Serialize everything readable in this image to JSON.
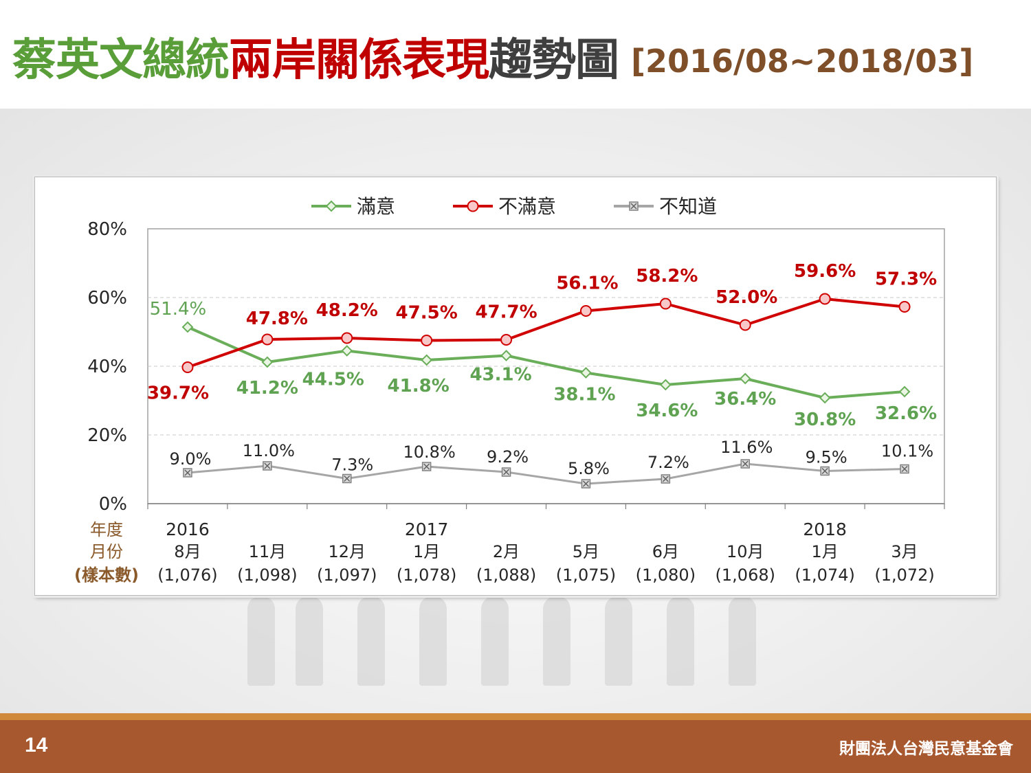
{
  "header": {
    "title_parts": [
      {
        "text": "蔡英文總統",
        "color": "#5a9e3a"
      },
      {
        "text": "兩岸關係表現",
        "color": "#c00000"
      },
      {
        "text": "趨勢圖",
        "color": "#3f3f3f"
      }
    ],
    "date_range": "[2016/08~2018/03]",
    "date_range_color": "#7f4f2a"
  },
  "footer": {
    "page_number": "14",
    "organization": "財團法人台灣民意基金會"
  },
  "chart_data": {
    "type": "line",
    "x_header_labels": [
      "年度",
      "月份",
      "(樣本數)"
    ],
    "years": [
      "2016",
      "",
      "",
      "2017",
      "",
      "",
      "",
      "",
      "2018",
      ""
    ],
    "months": [
      "8月",
      "11月",
      "12月",
      "1月",
      "2月",
      "5月",
      "6月",
      "10月",
      "1月",
      "3月"
    ],
    "sample_sizes": [
      "(1,076)",
      "(1,098)",
      "(1,097)",
      "(1,078)",
      "(1,088)",
      "(1,075)",
      "(1,080)",
      "(1,068)",
      "(1,074)",
      "(1,072)"
    ],
    "ylim": [
      0,
      80
    ],
    "yticks": [
      0,
      20,
      40,
      60,
      80
    ],
    "ytick_labels": [
      "0%",
      "20%",
      "40%",
      "60%",
      "80%"
    ],
    "grid": "horizontal-dashed",
    "legend_position": "top-center",
    "series": [
      {
        "name": "滿意",
        "color": "#6aae5a",
        "label_color": "#5fa352",
        "marker": "diamond",
        "values": [
          51.4,
          41.2,
          44.5,
          41.8,
          43.1,
          38.1,
          34.6,
          36.4,
          30.8,
          32.6
        ],
        "labels": [
          "51.4%",
          "41.2%",
          "44.5%",
          "41.8%",
          "43.1%",
          "38.1%",
          "34.6%",
          "36.4%",
          "30.8%",
          "32.6%"
        ]
      },
      {
        "name": "不滿意",
        "color": "#d00000",
        "label_color": "#c00000",
        "marker": "circle",
        "values": [
          39.7,
          47.8,
          48.2,
          47.5,
          47.7,
          56.1,
          58.2,
          52.0,
          59.6,
          57.3
        ],
        "labels": [
          "39.7%",
          "47.8%",
          "48.2%",
          "47.5%",
          "47.7%",
          "56.1%",
          "58.2%",
          "52.0%",
          "59.6%",
          "57.3%"
        ]
      },
      {
        "name": "不知道",
        "color": "#a6a6a6",
        "label_color": "#262626",
        "marker": "x-square",
        "values": [
          9.0,
          11.0,
          7.3,
          10.8,
          9.2,
          5.8,
          7.2,
          11.6,
          9.5,
          10.1
        ],
        "labels": [
          "9.0%",
          "11.0%",
          "7.3%",
          "10.8%",
          "9.2%",
          "5.8%",
          "7.2%",
          "11.6%",
          "9.5%",
          "10.1%"
        ]
      }
    ]
  }
}
